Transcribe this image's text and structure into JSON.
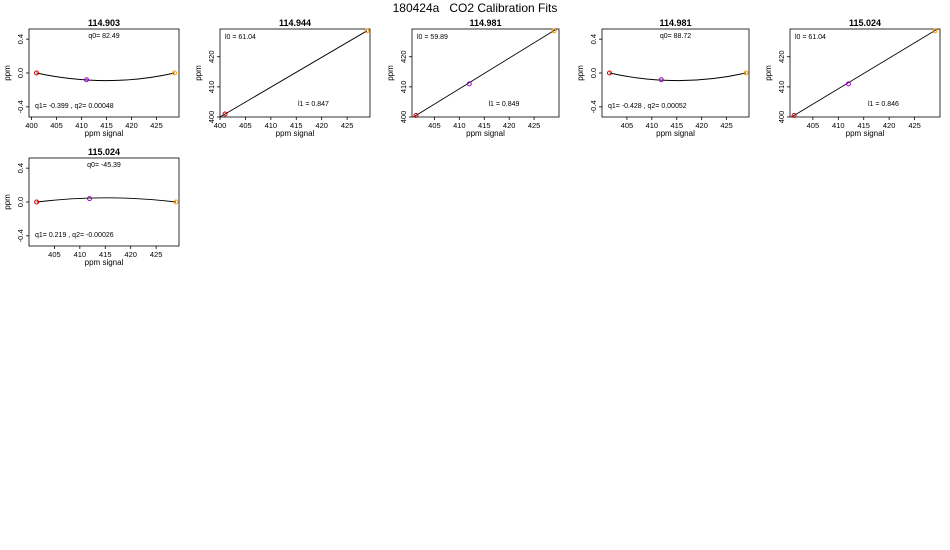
{
  "page": {
    "title": "180424a   CO2 Calibration Fits"
  },
  "chart_data": [
    {
      "type": "line",
      "title": "114.903",
      "xlabel": "ppm signal",
      "ylabel": "ppm",
      "xlim": [
        399.5,
        429.5
      ],
      "ylim": [
        -0.52,
        0.52
      ],
      "xticks": [
        400,
        405,
        410,
        415,
        420,
        425
      ],
      "yticks": [
        -0.4,
        0.0,
        0.4
      ],
      "ytick_labels": [
        "-0.4",
        "0.0",
        "0.4"
      ],
      "points": [
        {
          "x": 401.0,
          "y": 0.0,
          "color": "#cc0000"
        },
        {
          "x": 411.0,
          "y": -0.08,
          "color": "#9900cc"
        },
        {
          "x": 428.6,
          "y": 0.0,
          "color": "#ff9900"
        }
      ],
      "fit": {
        "kind": "quadratic",
        "q0": 82.49,
        "q1": -0.399,
        "q2": 0.00048,
        "x": [
          401.0,
          415.0,
          428.6
        ],
        "y": [
          0.0,
          -0.09,
          0.0
        ]
      },
      "annotations": [
        {
          "text": "q0= 82.49",
          "pos": "top"
        },
        {
          "text": "q1= -0.399 , q2= 0.00048",
          "pos": "bottom-left"
        }
      ]
    },
    {
      "type": "line",
      "title": "114.944",
      "xlabel": "ppm signal",
      "ylabel": "ppm",
      "xlim": [
        400.0,
        429.5
      ],
      "ylim": [
        400.0,
        429.2
      ],
      "xticks": [
        400,
        405,
        410,
        415,
        420,
        425
      ],
      "yticks": [
        400,
        410,
        420
      ],
      "ytick_labels": [
        "400",
        "410",
        "420"
      ],
      "points": [
        {
          "x": 401.0,
          "y": 401.0,
          "color": "#cc0000"
        },
        {
          "x": 428.9,
          "y": 428.6,
          "color": "#ff9900"
        }
      ],
      "fit": {
        "kind": "linear",
        "l0": 61.04,
        "l1": 0.847,
        "x": [
          400.0,
          428.9
        ],
        "y": [
          400.0,
          428.6
        ]
      },
      "annotations": [
        {
          "text": "l0 =  61.04",
          "pos": "top-left"
        },
        {
          "text": "l1 =  0.847",
          "pos": "bottom-right"
        }
      ]
    },
    {
      "type": "line",
      "title": "114.981",
      "xlabel": "ppm signal",
      "ylabel": "ppm",
      "xlim": [
        400.5,
        430.0
      ],
      "ylim": [
        400.0,
        429.2
      ],
      "xticks": [
        405,
        410,
        415,
        420,
        425
      ],
      "yticks": [
        400,
        410,
        420
      ],
      "ytick_labels": [
        "400",
        "410",
        "420"
      ],
      "points": [
        {
          "x": 401.3,
          "y": 400.5,
          "color": "#cc0000"
        },
        {
          "x": 412.0,
          "y": 411.0,
          "color": "#9900cc"
        },
        {
          "x": 429.0,
          "y": 428.6,
          "color": "#ff9900"
        }
      ],
      "fit": {
        "kind": "linear",
        "l0": 59.89,
        "l1": 0.849,
        "x": [
          400.8,
          429.5
        ],
        "y": [
          400.0,
          429.2
        ]
      },
      "annotations": [
        {
          "text": "l0 =  59.89",
          "pos": "top-left"
        },
        {
          "text": "l1 =  0.849",
          "pos": "bottom-right"
        }
      ]
    },
    {
      "type": "line",
      "title": "114.981",
      "xlabel": "ppm signal",
      "ylabel": "ppm",
      "xlim": [
        400.0,
        429.5
      ],
      "ylim": [
        -0.52,
        0.52
      ],
      "xticks": [
        405,
        410,
        415,
        420,
        425
      ],
      "yticks": [
        -0.4,
        0.0,
        0.4
      ],
      "ytick_labels": [
        "-0.4",
        "0.0",
        "0.4"
      ],
      "points": [
        {
          "x": 401.5,
          "y": 0.0,
          "color": "#cc0000"
        },
        {
          "x": 411.9,
          "y": -0.08,
          "color": "#9900cc"
        },
        {
          "x": 428.9,
          "y": 0.0,
          "color": "#ff9900"
        }
      ],
      "fit": {
        "kind": "quadratic",
        "q0": 88.72,
        "q1": -0.428,
        "q2": 0.00052,
        "x": [
          401.5,
          415.2,
          428.9
        ],
        "y": [
          0.0,
          -0.09,
          0.0
        ]
      },
      "annotations": [
        {
          "text": "q0= 88.72",
          "pos": "top"
        },
        {
          "text": "q1= -0.428 , q2= 0.00052",
          "pos": "bottom-left"
        }
      ]
    },
    {
      "type": "line",
      "title": "115.024",
      "xlabel": "ppm signal",
      "ylabel": "ppm",
      "xlim": [
        400.5,
        430.0
      ],
      "ylim": [
        400.0,
        429.2
      ],
      "xticks": [
        405,
        410,
        415,
        420,
        425
      ],
      "yticks": [
        400,
        410,
        420
      ],
      "ytick_labels": [
        "400",
        "410",
        "420"
      ],
      "points": [
        {
          "x": 401.3,
          "y": 400.5,
          "color": "#cc0000"
        },
        {
          "x": 412.0,
          "y": 411.0,
          "color": "#9900cc"
        },
        {
          "x": 429.0,
          "y": 428.6,
          "color": "#ff9900"
        }
      ],
      "fit": {
        "kind": "linear",
        "l0": 61.04,
        "l1": 0.846,
        "x": [
          400.8,
          429.5
        ],
        "y": [
          400.0,
          429.2
        ]
      },
      "annotations": [
        {
          "text": "l0 =  61.04",
          "pos": "top-left"
        },
        {
          "text": "l1 =  0.846",
          "pos": "bottom-right"
        }
      ]
    },
    {
      "type": "line",
      "title": "115.024",
      "xlabel": "ppm signal",
      "ylabel": "ppm",
      "xlim": [
        400.0,
        429.5
      ],
      "ylim": [
        -0.52,
        0.52
      ],
      "xticks": [
        405,
        410,
        415,
        420,
        425
      ],
      "yticks": [
        -0.4,
        0.0,
        0.4
      ],
      "ytick_labels": [
        "-0.4",
        "0.0",
        "0.4"
      ],
      "points": [
        {
          "x": 401.5,
          "y": 0.0,
          "color": "#cc0000"
        },
        {
          "x": 411.9,
          "y": 0.04,
          "color": "#9900cc"
        },
        {
          "x": 428.9,
          "y": 0.0,
          "color": "#ff9900"
        }
      ],
      "fit": {
        "kind": "quadratic",
        "q0": -45.39,
        "q1": 0.219,
        "q2": -0.00026,
        "x": [
          401.5,
          415.2,
          428.9
        ],
        "y": [
          0.0,
          0.05,
          0.0
        ]
      },
      "annotations": [
        {
          "text": "q0= -45.39",
          "pos": "top"
        },
        {
          "text": "q1= 0.219 , q2= -0.00026",
          "pos": "bottom-left"
        }
      ]
    }
  ]
}
